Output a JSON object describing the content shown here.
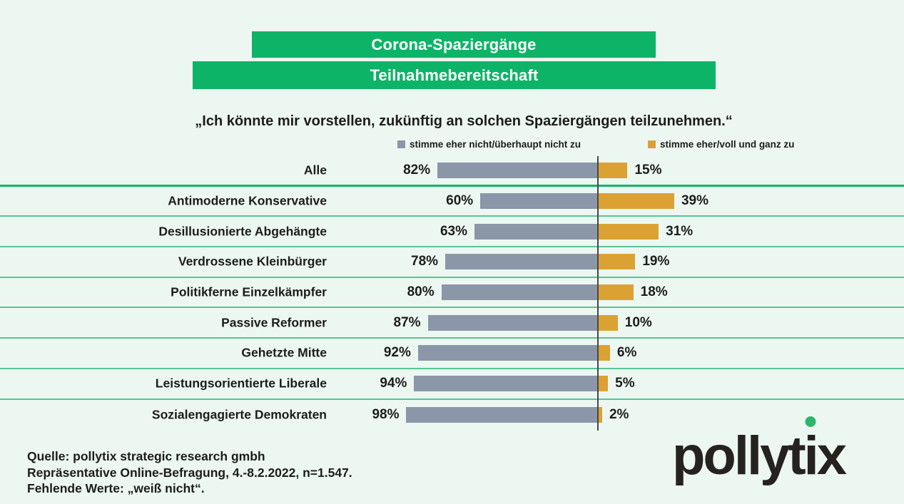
{
  "banners": [
    {
      "label": "Corona-Spaziergänge"
    },
    {
      "label": "Teilnahmebereitschaft"
    }
  ],
  "quote": "„Ich könnte mir vorstellen, zukünftig an solchen Spaziergängen teilzunehmen.“",
  "legend": [
    {
      "label": "stimme eher nicht/überhaupt nicht zu",
      "color": "#8b96a9"
    },
    {
      "label": "stimme eher/voll und ganz zu",
      "color": "#dba233"
    }
  ],
  "chart_data": {
    "type": "bar",
    "orientation": "horizontal-diverging",
    "unit": "%",
    "categories": [
      "Alle",
      "Antimoderne Konservative",
      "Desillusionierte Abgehängte",
      "Verdrossene Kleinbürger",
      "Politikferne Einzelkämpfer",
      "Passive Reformer",
      "Gehetzte Mitte",
      "Leistungsorientierte Liberale",
      "Sozialengagierte Demokraten"
    ],
    "series": [
      {
        "name": "stimme eher nicht/überhaupt nicht zu",
        "direction": "left",
        "color": "#8b96a9",
        "values": [
          82,
          60,
          63,
          78,
          80,
          87,
          92,
          94,
          98
        ]
      },
      {
        "name": "stimme eher/voll und ganz zu",
        "direction": "right",
        "color": "#dba233",
        "values": [
          15,
          39,
          31,
          19,
          18,
          10,
          6,
          5,
          2
        ]
      }
    ],
    "title": "Corona-Spaziergänge — Teilnahmebereitschaft",
    "subtitle": "„Ich könnte mir vorstellen, zukünftig an solchen Spaziergängen teilzunehmen.“",
    "legend_position": "top",
    "grid": "row-separators-green"
  },
  "footer": {
    "lines": [
      "Quelle: pollytix strategic research gmbh",
      "Repräsentative Online-Befragung, 4.-8.2.2022, n=1.547.",
      "Fehlende Werte: „weiß nicht“."
    ]
  },
  "logo": {
    "text": "pollytix"
  },
  "colors": {
    "background": "#ecf7f1",
    "banner_green": "#0db467",
    "separator_thick": "#0fb466",
    "separator_thin": "#58c593",
    "bar_gray": "#8b96a9",
    "bar_orange": "#dba233",
    "axis_line": "#474747",
    "text": "#1d1d1b"
  }
}
